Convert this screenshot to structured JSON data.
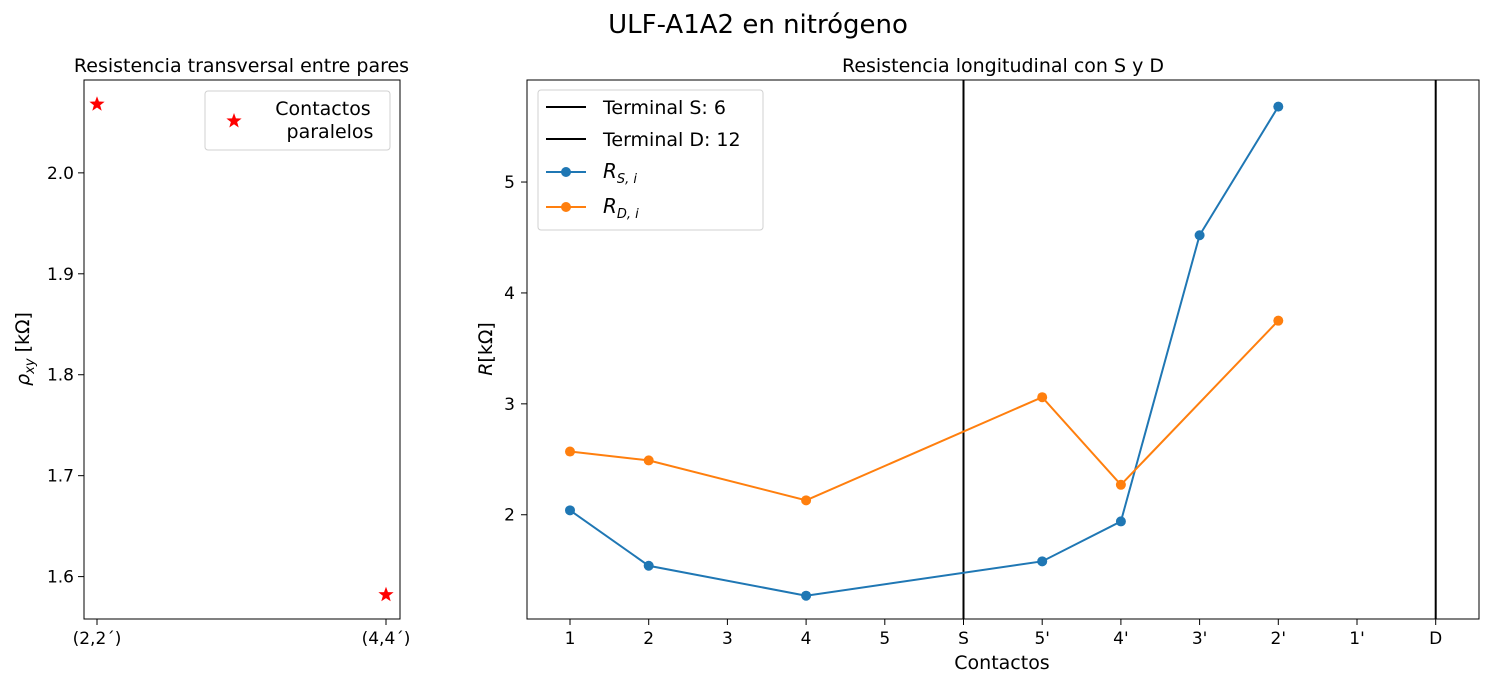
{
  "figure": {
    "title": "ULF-A1A2 en nitrógeno"
  },
  "chart_data": [
    {
      "type": "scatter",
      "title": "Resistencia transversal entre pares",
      "xlabel": "",
      "ylabel": "ρxy [kΩ]",
      "ylabel_main": "ρ",
      "ylabel_sub": "xy",
      "ylabel_tail": " [kΩ]",
      "categories": [
        "(2,2´)",
        "(4,4´)"
      ],
      "series": [
        {
          "name": "Contactos paralelos",
          "legend_lines": [
            "Contactos",
            "paralelos"
          ],
          "marker": "star",
          "color": "#ff0000",
          "values": [
            2.068,
            1.582
          ]
        }
      ],
      "ylim": [
        1.558,
        2.092
      ],
      "yticks": [
        1.6,
        1.7,
        1.8,
        1.9,
        2.0
      ],
      "ytick_labels": [
        "1.6",
        "1.7",
        "1.8",
        "1.9",
        "2.0"
      ],
      "legend": "top-right",
      "grid": false
    },
    {
      "type": "line",
      "title": "Resistencia longitudinal con S y D",
      "xlabel": "Contactos",
      "ylabel": "R[kΩ]",
      "categories": [
        "1",
        "2",
        "3",
        "4",
        "5",
        "S",
        "5'",
        "4'",
        "3'",
        "2'",
        "1'",
        "D"
      ],
      "vlines": [
        {
          "name": "Terminal S: 6",
          "category": "S",
          "color": "#000000"
        },
        {
          "name": "Terminal D: 12",
          "category": "D",
          "color": "#000000"
        }
      ],
      "series": [
        {
          "name": "R_{S,i}",
          "label_main": "R",
          "label_sub": "S, i",
          "color": "#1f77b4",
          "points": [
            {
              "x": "1",
              "y": 2.04
            },
            {
              "x": "2",
              "y": 1.54
            },
            {
              "x": "4",
              "y": 1.27
            },
            {
              "x": "5'",
              "y": 1.58
            },
            {
              "x": "4'",
              "y": 1.94
            },
            {
              "x": "3'",
              "y": 4.52
            },
            {
              "x": "2'",
              "y": 5.68
            }
          ]
        },
        {
          "name": "R_{D,i}",
          "label_main": "R",
          "label_sub": "D, i",
          "color": "#ff7f0e",
          "points": [
            {
              "x": "1",
              "y": 2.57
            },
            {
              "x": "2",
              "y": 2.49
            },
            {
              "x": "4",
              "y": 2.13
            },
            {
              "x": "5'",
              "y": 3.06
            },
            {
              "x": "4'",
              "y": 2.27
            },
            {
              "x": "2'",
              "y": 3.75
            }
          ]
        }
      ],
      "ylim": [
        1.06,
        5.92
      ],
      "yticks": [
        2,
        3,
        4,
        5
      ],
      "ytick_labels": [
        "2",
        "3",
        "4",
        "5"
      ],
      "legend": "top-left",
      "grid": false
    }
  ]
}
